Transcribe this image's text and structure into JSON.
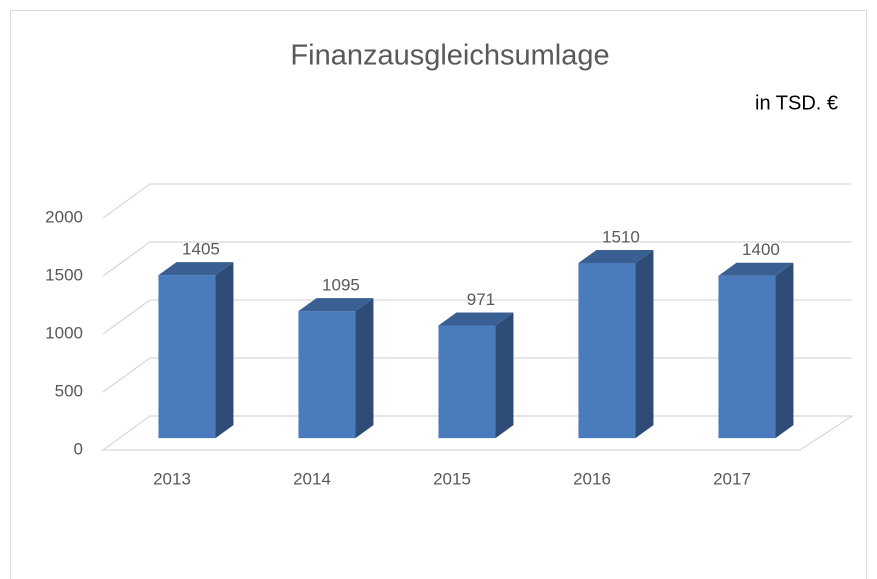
{
  "chart_data": {
    "type": "bar3d",
    "title": "Finanzausgleichsumlage",
    "subtitle": "in TSD. €",
    "categories": [
      "2013",
      "2014",
      "2015",
      "2016",
      "2017"
    ],
    "values": [
      1405,
      1095,
      971,
      1510,
      1400
    ],
    "color": "#4a7bbd",
    "ylim": [
      0,
      2000
    ],
    "yticks": [
      0,
      500,
      1000,
      1500,
      2000
    ],
    "grid": true
  }
}
